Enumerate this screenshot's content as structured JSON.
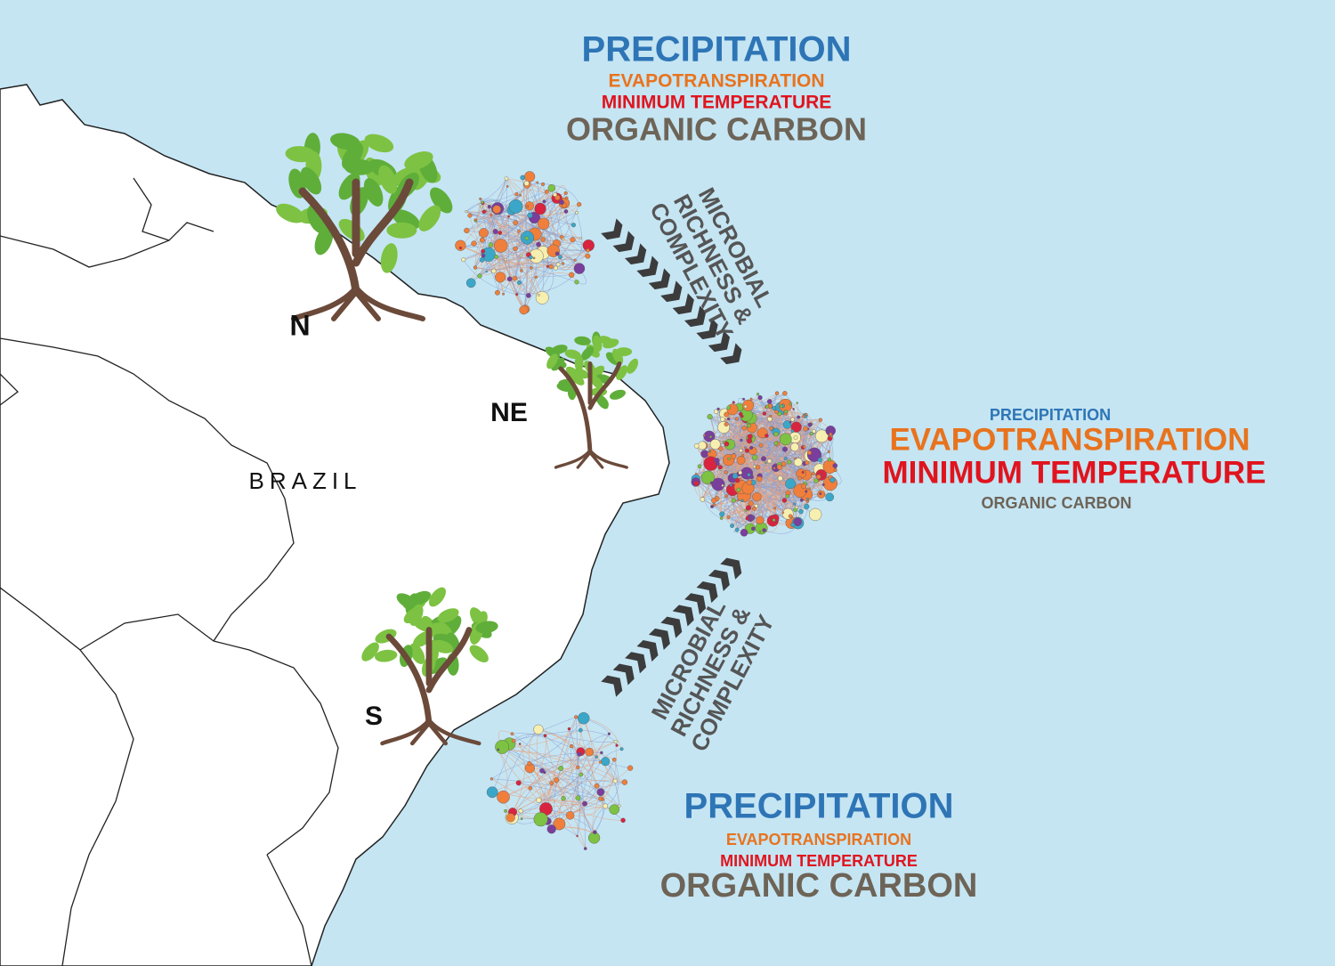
{
  "regions": [
    {
      "label": "N"
    },
    {
      "label": "NE"
    },
    {
      "label": "S"
    }
  ],
  "country": "BRAZIL",
  "clusters": [
    {
      "terms": [
        "PRECIPITATION",
        "EVAPOTRANSPIRATION",
        "MINIMUM TEMPERATURE",
        "ORGANIC CARBON"
      ]
    },
    {
      "terms": [
        "PRECIPITATION",
        "EVAPOTRANSPIRATION",
        "MINIMUM TEMPERATURE",
        "ORGANIC CARBON"
      ]
    },
    {
      "terms": [
        "PRECIPITATION",
        "EVAPOTRANSPIRATION",
        "MINIMUM TEMPERATURE",
        "ORGANIC CARBON"
      ]
    }
  ],
  "arrows": [
    {
      "lines": [
        "MICROBIAL",
        "RICHNESS &",
        "COMPLEXITY"
      ]
    },
    {
      "lines": [
        "MICROBIAL",
        "RICHNESS &",
        "COMPLEXITY"
      ]
    }
  ]
}
